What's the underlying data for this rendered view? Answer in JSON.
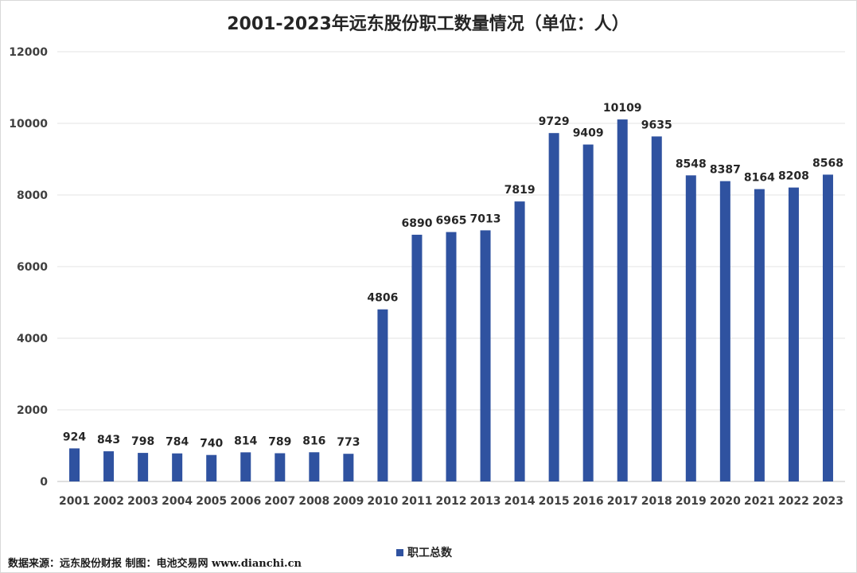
{
  "chart_data": {
    "type": "bar",
    "title": "2001-2023年远东股份职工数量情况（单位：人）",
    "categories": [
      "2001",
      "2002",
      "2003",
      "2004",
      "2005",
      "2006",
      "2007",
      "2008",
      "2009",
      "2010",
      "2011",
      "2012",
      "2013",
      "2014",
      "2015",
      "2016",
      "2017",
      "2018",
      "2019",
      "2020",
      "2021",
      "2022",
      "2023"
    ],
    "series": [
      {
        "name": "职工总数",
        "values": [
          924,
          843,
          798,
          784,
          740,
          814,
          789,
          816,
          773,
          4806,
          6890,
          6965,
          7013,
          7819,
          9729,
          9409,
          10109,
          9635,
          8548,
          8387,
          8164,
          8208,
          8568
        ]
      }
    ],
    "ylim": [
      0,
      12000
    ],
    "yticks": [
      "0",
      "2000",
      "4000",
      "6000",
      "8000",
      "10000",
      "12000"
    ],
    "grid": true,
    "legend_position": "bottom",
    "bar_color": "#2f52a0"
  },
  "footer": {
    "source": "数据来源：远东股份财报  制图：电池交易网 www.dianchi.cn"
  }
}
